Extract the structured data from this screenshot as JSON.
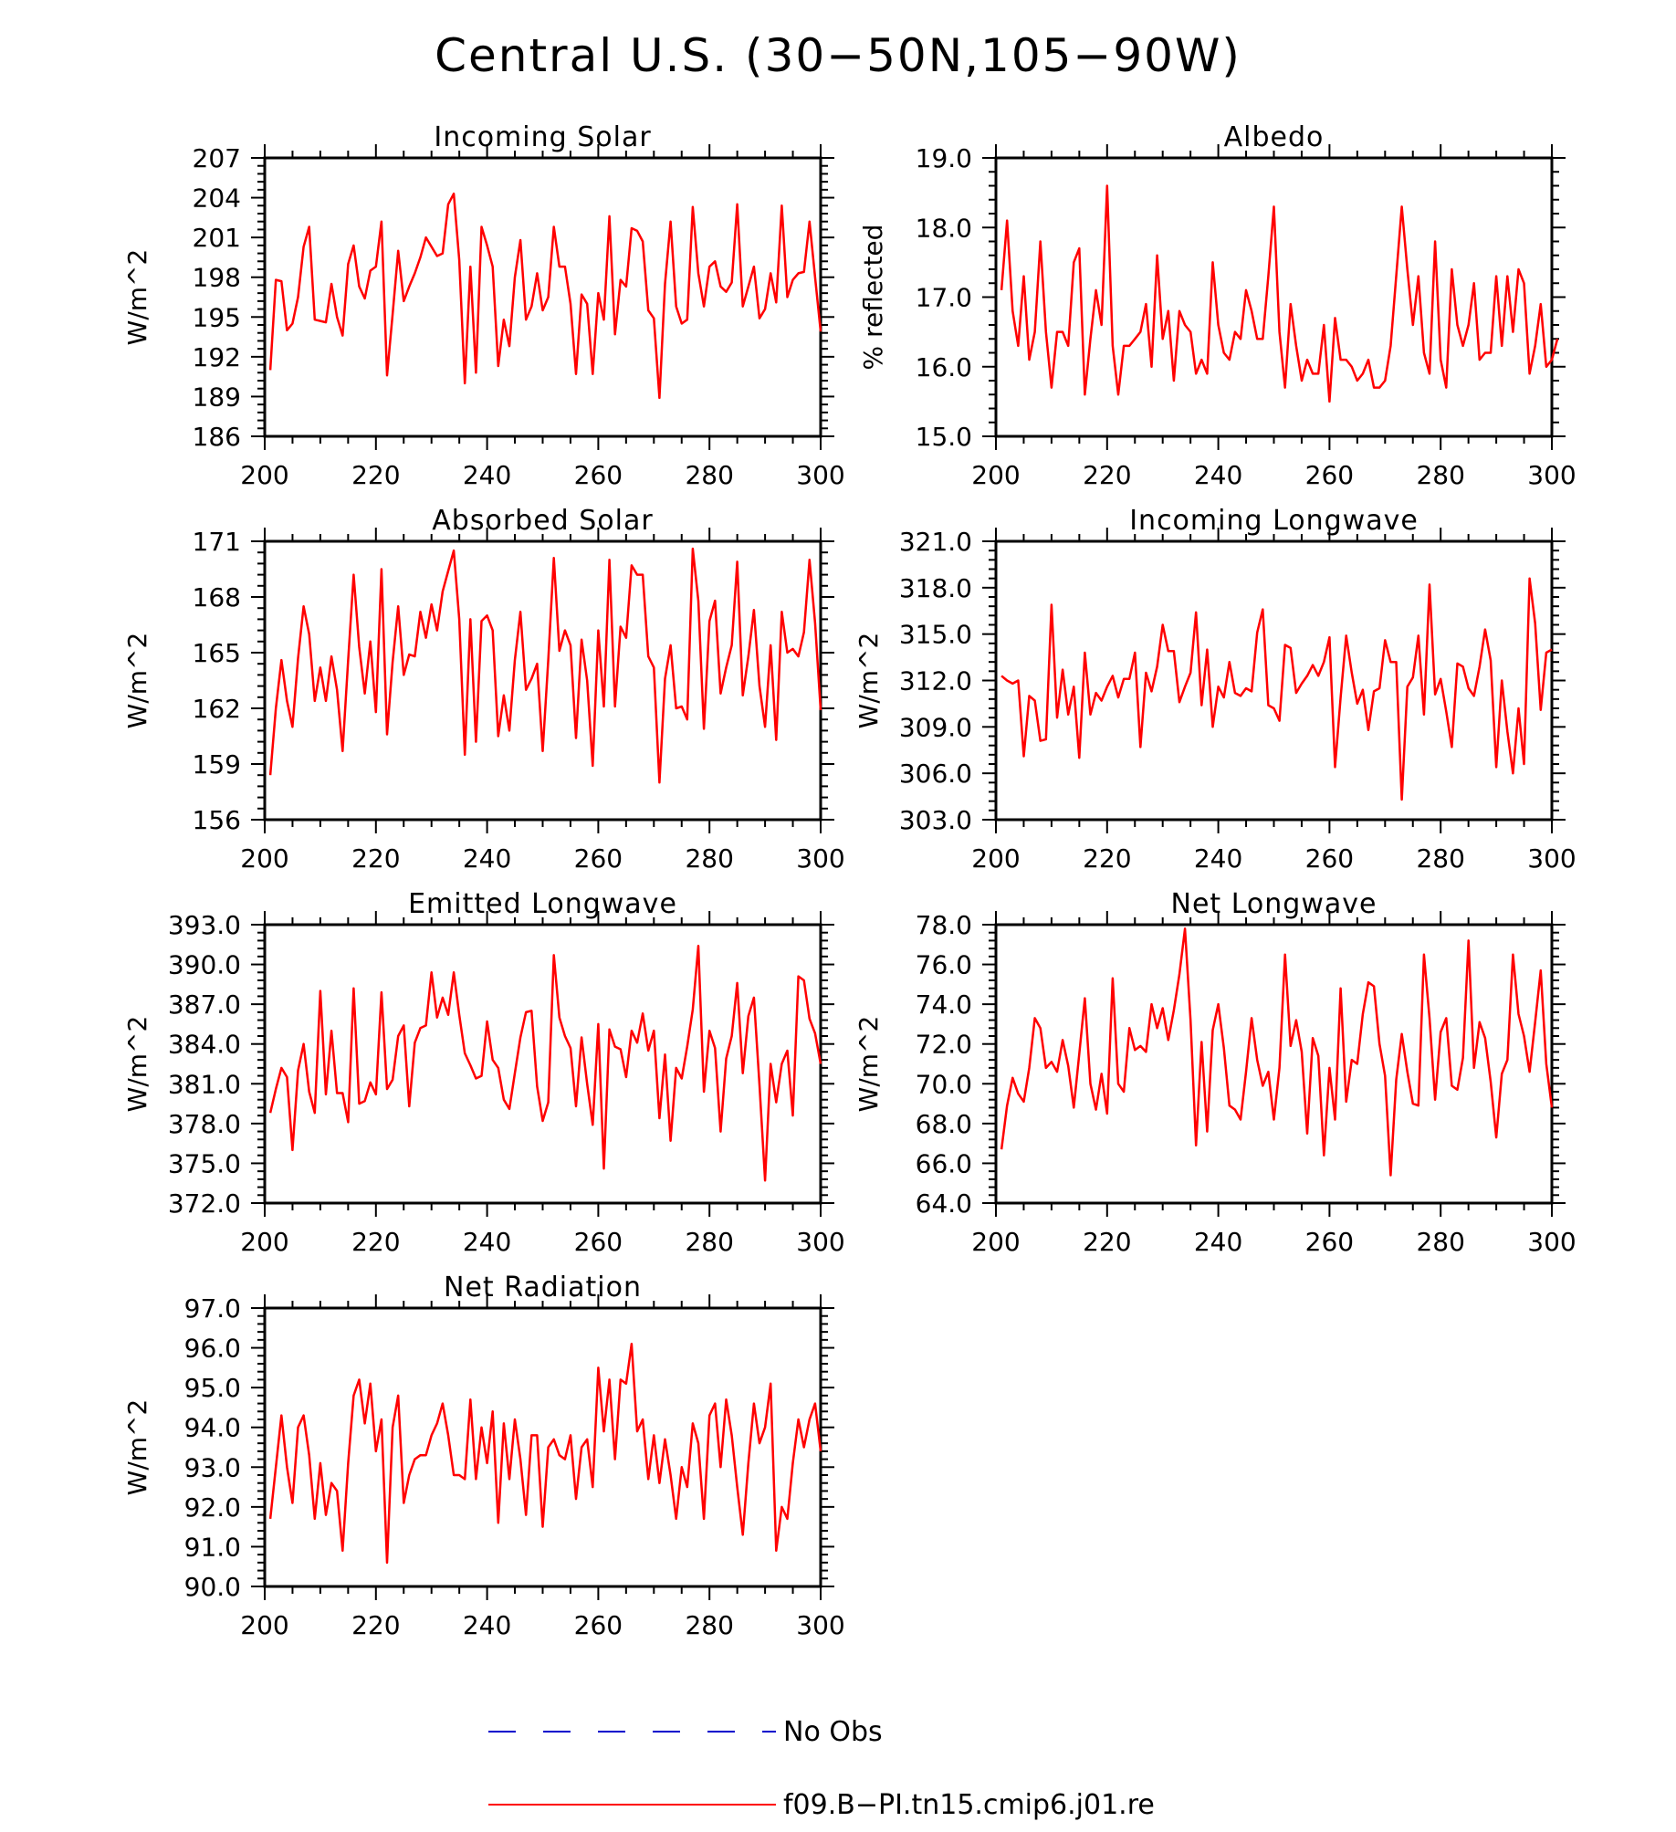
{
  "title": "Central U.S. (30−50N,105−90W)",
  "colors": {
    "model": "#ff0000",
    "obs": "#0000cc",
    "axis": "#000000"
  },
  "legend": {
    "items": [
      {
        "label": "No Obs",
        "style": "dashed",
        "color": "#0000cc"
      },
      {
        "label": "f09.B−PI.tn15.cmip6.j01.re",
        "style": "solid",
        "color": "#ff0000"
      }
    ]
  },
  "chart_data": [
    {
      "type": "line",
      "title": "Incoming Solar",
      "xlabel": "",
      "ylabel": "W/m^2",
      "xlim": [
        200,
        300
      ],
      "ylim": [
        186,
        207
      ],
      "xticks": [
        "200",
        "220",
        "240",
        "260",
        "280",
        "300"
      ],
      "yticks": [
        "186",
        "189",
        "192",
        "195",
        "198",
        "201",
        "204",
        "207"
      ],
      "x_start": 201,
      "series": [
        {
          "values": [
            191,
            197.8,
            197.7,
            194,
            194.5,
            196.5,
            200.3,
            201.8,
            194.8,
            194.7,
            194.6,
            197.5,
            195,
            193.6,
            199,
            200.4,
            197.3,
            196.4,
            198.5,
            198.8,
            202.2,
            190.6,
            195.2,
            200,
            196.2,
            197.3,
            198.3,
            199.5,
            201,
            200.3,
            199.6,
            199.8,
            203.5,
            204.3,
            199.3,
            190,
            198.8,
            190.8,
            201.8,
            200.4,
            198.8,
            191.3,
            194.8,
            192.8,
            198,
            200.8,
            194.8,
            195.8,
            198.3,
            195.5,
            196.5,
            201.8,
            198.8,
            198.8,
            196,
            190.7,
            196.7,
            196,
            190.7,
            196.8,
            194.8,
            202.6,
            193.7,
            197.8,
            197.3,
            201.7,
            201.5,
            200.7,
            195.5,
            194.9,
            188.9,
            197.5,
            202.2,
            195.8,
            194.5,
            194.8,
            203.3,
            198.3,
            195.8,
            198.8,
            199.2,
            197.3,
            196.9,
            197.6,
            203.5,
            195.8,
            197.3,
            198.8,
            194.9,
            195.6,
            198.3,
            196.1,
            203.4,
            196.5,
            197.8,
            198.3,
            198.4,
            202.2,
            198,
            193.9
          ]
        }
      ]
    },
    {
      "type": "line",
      "title": "Albedo",
      "xlabel": "",
      "ylabel": "% reflected",
      "xlim": [
        200,
        300
      ],
      "ylim": [
        15,
        19
      ],
      "xticks": [
        "200",
        "220",
        "240",
        "260",
        "280",
        "300"
      ],
      "yticks": [
        "15.0",
        "16.0",
        "17.0",
        "18.0",
        "19.0"
      ],
      "x_start": 201,
      "series": [
        {
          "values": [
            17.1,
            18.1,
            16.8,
            16.3,
            17.3,
            16.1,
            16.5,
            17.8,
            16.5,
            15.7,
            16.5,
            16.5,
            16.3,
            17.5,
            17.7,
            15.6,
            16.4,
            17.1,
            16.6,
            18.6,
            16.3,
            15.6,
            16.3,
            16.3,
            16.4,
            16.5,
            16.9,
            16,
            17.6,
            16.4,
            16.8,
            15.8,
            16.8,
            16.6,
            16.5,
            15.9,
            16.1,
            15.9,
            17.5,
            16.6,
            16.2,
            16.1,
            16.5,
            16.4,
            17.1,
            16.8,
            16.4,
            16.4,
            17.3,
            18.3,
            16.5,
            15.7,
            16.9,
            16.3,
            15.8,
            16.1,
            15.9,
            15.9,
            16.6,
            15.5,
            16.7,
            16.1,
            16.1,
            16,
            15.8,
            15.9,
            16.1,
            15.7,
            15.7,
            15.8,
            16.3,
            17.3,
            18.3,
            17.4,
            16.6,
            17.3,
            16.2,
            15.9,
            17.8,
            16.1,
            15.7,
            17.4,
            16.6,
            16.3,
            16.6,
            17.2,
            16.1,
            16.2,
            16.2,
            17.3,
            16.3,
            17.3,
            16.5,
            17.4,
            17.2,
            15.9,
            16.3,
            16.9,
            16,
            16.1,
            16.4
          ]
        }
      ]
    },
    {
      "type": "line",
      "title": "Absorbed Solar",
      "xlabel": "",
      "ylabel": "W/m^2",
      "xlim": [
        200,
        300
      ],
      "ylim": [
        156,
        171
      ],
      "xticks": [
        "200",
        "220",
        "240",
        "260",
        "280",
        "300"
      ],
      "yticks": [
        "156",
        "159",
        "162",
        "165",
        "168",
        "171"
      ],
      "x_start": 201,
      "series": [
        {
          "values": [
            158.4,
            162,
            164.6,
            162.4,
            161,
            164.7,
            167.5,
            166,
            162.4,
            164.2,
            162.4,
            164.8,
            163,
            159.7,
            164.6,
            169.2,
            165.3,
            162.8,
            165.6,
            161.8,
            169.5,
            160.6,
            164.5,
            167.5,
            163.8,
            164.9,
            164.8,
            167.2,
            165.8,
            167.6,
            166.2,
            168.3,
            169.4,
            170.5,
            166.8,
            159.5,
            166.8,
            160.2,
            166.7,
            167,
            166.2,
            160.5,
            162.7,
            160.8,
            164.6,
            167.2,
            163,
            163.6,
            164.4,
            159.7,
            164.6,
            170.1,
            165.1,
            166.2,
            165.4,
            160.4,
            165.7,
            163.5,
            158.9,
            166.2,
            162.1,
            170,
            162.1,
            166.4,
            165.8,
            169.7,
            169.2,
            169.2,
            164.8,
            164.2,
            158,
            163.6,
            165.4,
            162,
            162.1,
            161.4,
            170.6,
            167.8,
            160.9,
            166.7,
            167.8,
            162.8,
            164.2,
            165.4,
            169.9,
            162.7,
            164.8,
            167.3,
            163.2,
            161,
            165.4,
            160.3,
            167.2,
            165,
            165.2,
            164.8,
            166.1,
            170,
            166.6,
            161.9
          ]
        }
      ]
    },
    {
      "type": "line",
      "title": "Incoming Longwave",
      "xlabel": "",
      "ylabel": "W/m^2",
      "xlim": [
        200,
        300
      ],
      "ylim": [
        303,
        321
      ],
      "xticks": [
        "200",
        "220",
        "240",
        "260",
        "280",
        "300"
      ],
      "yticks": [
        "303.0",
        "306.0",
        "309.0",
        "312.0",
        "315.0",
        "318.0",
        "321.0"
      ],
      "x_start": 201,
      "series": [
        {
          "values": [
            312.3,
            312,
            311.8,
            312,
            307.1,
            311,
            310.7,
            308.1,
            308.2,
            316.9,
            309.6,
            312.7,
            309.8,
            311.6,
            307,
            313.8,
            309.8,
            311.2,
            310.7,
            311.6,
            312.3,
            310.9,
            312.1,
            312.1,
            313.8,
            307.7,
            312.5,
            311.3,
            312.9,
            315.6,
            313.9,
            313.9,
            310.6,
            311.6,
            312.5,
            316.4,
            310.4,
            314,
            309,
            311.6,
            310.9,
            313.2,
            311.2,
            311,
            311.5,
            311.3,
            315.1,
            316.6,
            310.4,
            310.2,
            309.4,
            314.3,
            314.1,
            311.2,
            311.8,
            312.3,
            313,
            312.3,
            313.2,
            314.8,
            306.4,
            310.9,
            314.9,
            312.5,
            310.5,
            311.4,
            308.8,
            311.3,
            311.5,
            314.6,
            313.2,
            313.2,
            304.3,
            311.6,
            312.2,
            314.9,
            309.8,
            318.2,
            311.1,
            312.1,
            310,
            307.7,
            313.1,
            312.9,
            311.5,
            311,
            312.9,
            315.3,
            313.3,
            306.4,
            312,
            308.7,
            306,
            310.2,
            306.6,
            318.6,
            315.7,
            310.1,
            313.8,
            314
          ]
        }
      ]
    },
    {
      "type": "line",
      "title": "Emitted Longwave",
      "xlabel": "",
      "ylabel": "W/m^2",
      "xlim": [
        200,
        300
      ],
      "ylim": [
        372,
        393
      ],
      "xticks": [
        "200",
        "220",
        "240",
        "260",
        "280",
        "300"
      ],
      "yticks": [
        "372.0",
        "375.0",
        "378.0",
        "381.0",
        "384.0",
        "387.0",
        "390.0",
        "393.0"
      ],
      "x_start": 201,
      "series": [
        {
          "values": [
            378.8,
            380.6,
            382.2,
            381.5,
            376,
            382,
            384,
            380.4,
            378.8,
            388,
            380.2,
            385,
            380.3,
            380.3,
            378.1,
            388.2,
            379.5,
            379.7,
            381.1,
            380.2,
            387.9,
            380.6,
            381.3,
            384.6,
            385.4,
            379.3,
            384.1,
            385.2,
            385.4,
            389.4,
            386,
            387.5,
            386.2,
            389.4,
            386.2,
            383.3,
            382.4,
            381.4,
            381.6,
            385.7,
            382.8,
            382.2,
            379.8,
            379.1,
            381.8,
            384.5,
            386.4,
            386.5,
            380.8,
            378.2,
            379.6,
            390.7,
            386,
            384.6,
            383.7,
            379.3,
            384.5,
            381,
            377.9,
            385.5,
            374.6,
            385.1,
            383.8,
            383.6,
            381.5,
            385,
            384.1,
            386.3,
            383.5,
            385,
            378.4,
            383.2,
            376.7,
            382.2,
            381.4,
            383.8,
            386.6,
            391.4,
            380.4,
            385,
            383.7,
            377.4,
            382.9,
            384.6,
            388.6,
            381.8,
            386.1,
            387.5,
            380.9,
            373.7,
            382.5,
            379.6,
            382.5,
            383.5,
            378.6,
            389.1,
            388.8,
            385.9,
            384.8,
            382.5
          ]
        }
      ]
    },
    {
      "type": "line",
      "title": "Net Longwave",
      "xlabel": "",
      "ylabel": "W/m^2",
      "xlim": [
        200,
        300
      ],
      "ylim": [
        64,
        78
      ],
      "xticks": [
        "200",
        "220",
        "240",
        "260",
        "280",
        "300"
      ],
      "yticks": [
        "64.0",
        "66.0",
        "68.0",
        "70.0",
        "72.0",
        "74.0",
        "76.0",
        "78.0"
      ],
      "x_start": 201,
      "series": [
        {
          "values": [
            66.7,
            68.9,
            70.3,
            69.5,
            69.1,
            70.8,
            73.3,
            72.8,
            70.8,
            71.1,
            70.6,
            72.2,
            70.9,
            68.8,
            71.5,
            74.3,
            70,
            68.7,
            70.5,
            68.5,
            75.3,
            70,
            69.6,
            72.8,
            71.7,
            71.9,
            71.6,
            74,
            72.8,
            73.8,
            72.2,
            73.7,
            75.5,
            77.8,
            73.2,
            66.9,
            72.1,
            67.6,
            72.7,
            74,
            71.8,
            68.9,
            68.7,
            68.2,
            70.6,
            73.3,
            71.2,
            69.9,
            70.6,
            68.2,
            70.8,
            76.5,
            71.9,
            73.2,
            71.6,
            67.5,
            72.3,
            71.4,
            66.4,
            70.8,
            68.2,
            74.8,
            69.1,
            71.2,
            71,
            73.5,
            75.1,
            74.9,
            72,
            70.4,
            65.4,
            70.2,
            72.5,
            70.6,
            69,
            68.9,
            76.5,
            73.3,
            69.2,
            72.6,
            73.3,
            69.9,
            69.7,
            71.3,
            77.2,
            70.8,
            73.1,
            72.3,
            70.1,
            67.3,
            70.5,
            71.2,
            76.5,
            73.5,
            72.4,
            70.6,
            73.1,
            75.7,
            71,
            68.8
          ]
        }
      ]
    },
    {
      "type": "line",
      "title": "Net Radiation",
      "xlabel": "",
      "ylabel": "W/m^2",
      "xlim": [
        200,
        300
      ],
      "ylim": [
        90,
        97
      ],
      "xticks": [
        "200",
        "220",
        "240",
        "260",
        "280",
        "300"
      ],
      "yticks": [
        "90.0",
        "91.0",
        "92.0",
        "93.0",
        "94.0",
        "95.0",
        "96.0",
        "97.0"
      ],
      "x_start": 201,
      "series": [
        {
          "values": [
            91.7,
            93,
            94.3,
            93,
            92.1,
            94,
            94.3,
            93.3,
            91.7,
            93.1,
            91.8,
            92.6,
            92.4,
            90.9,
            93.1,
            94.8,
            95.2,
            94.1,
            95.1,
            93.4,
            94.2,
            90.6,
            94,
            94.8,
            92.1,
            92.8,
            93.2,
            93.3,
            93.3,
            93.8,
            94.1,
            94.6,
            93.8,
            92.8,
            92.8,
            92.7,
            94.7,
            92.7,
            94,
            93.1,
            94.4,
            91.6,
            94.1,
            92.7,
            94.2,
            93.2,
            91.8,
            93.8,
            93.8,
            91.5,
            93.5,
            93.7,
            93.3,
            93.2,
            93.8,
            92.2,
            93.5,
            93.7,
            92.5,
            95.5,
            93.9,
            95.2,
            93.2,
            95.2,
            95.1,
            96.1,
            93.9,
            94.2,
            92.7,
            93.8,
            92.6,
            93.7,
            92.8,
            91.7,
            93,
            92.5,
            94.1,
            93.6,
            91.7,
            94.3,
            94.6,
            93,
            94.7,
            93.8,
            92.5,
            91.3,
            93.1,
            94.6,
            93.6,
            94,
            95.1,
            90.9,
            92,
            91.7,
            93.1,
            94.2,
            93.5,
            94.2,
            94.6,
            93.4
          ]
        }
      ]
    }
  ]
}
